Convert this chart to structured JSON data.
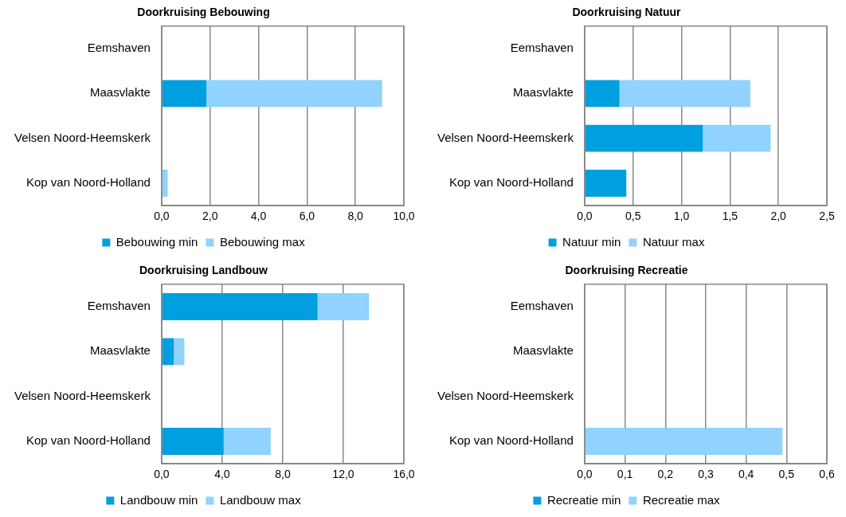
{
  "chart_data": [
    {
      "type": "bar",
      "title": "Doorkruising Bebouwing",
      "orientation": "horizontal",
      "stacked": true,
      "grid": "x",
      "legend": "bottom",
      "categories": [
        "Eemshaven",
        "Maasvlakte",
        "Velsen Noord-Heemskerk",
        "Kop van Noord-Holland"
      ],
      "series": [
        {
          "name": "Bebouwing min",
          "color": "#009fdf",
          "values": [
            0,
            1.85,
            0,
            0
          ]
        },
        {
          "name": "Bebouwing max",
          "color": "#8fd3fe",
          "values": [
            0,
            7.25,
            0,
            0.25
          ]
        }
      ],
      "xlim": [
        0,
        10
      ],
      "xticks": [
        {
          "value": 0,
          "label": "0,0"
        },
        {
          "value": 2,
          "label": "2,0"
        },
        {
          "value": 4,
          "label": "4,0"
        },
        {
          "value": 6,
          "label": "6,0"
        },
        {
          "value": 8,
          "label": "8,0"
        },
        {
          "value": 10,
          "label": "10,0"
        }
      ]
    },
    {
      "type": "bar",
      "title": "Doorkruising Natuur",
      "orientation": "horizontal",
      "stacked": true,
      "grid": "x",
      "legend": "bottom",
      "categories": [
        "Eemshaven",
        "Maasvlakte",
        "Velsen Noord-Heemskerk",
        "Kop van Noord-Holland"
      ],
      "series": [
        {
          "name": "Natuur min",
          "color": "#009fdf",
          "values": [
            0,
            0.36,
            1.22,
            0.43
          ]
        },
        {
          "name": "Natuur max",
          "color": "#8fd3fe",
          "values": [
            0,
            1.35,
            0.7,
            0
          ]
        }
      ],
      "xlim": [
        0,
        2.5
      ],
      "xticks": [
        {
          "value": 0,
          "label": "0,0"
        },
        {
          "value": 0.5,
          "label": "0,5"
        },
        {
          "value": 1,
          "label": "1,0"
        },
        {
          "value": 1.5,
          "label": "1,5"
        },
        {
          "value": 2,
          "label": "2,0"
        },
        {
          "value": 2.5,
          "label": "2,5"
        }
      ]
    },
    {
      "type": "bar",
      "title": "Doorkruising Landbouw",
      "orientation": "horizontal",
      "stacked": true,
      "grid": "x",
      "legend": "bottom",
      "categories": [
        "Eemshaven",
        "Maasvlakte",
        "Velsen Noord-Heemskerk",
        "Kop van Noord-Holland"
      ],
      "series": [
        {
          "name": "Landbouw min",
          "color": "#009fdf",
          "values": [
            10.3,
            0.8,
            0,
            4.1
          ]
        },
        {
          "name": "Landbouw max",
          "color": "#8fd3fe",
          "values": [
            3.4,
            0.7,
            0,
            3.1
          ]
        }
      ],
      "xlim": [
        0,
        16
      ],
      "xticks": [
        {
          "value": 0,
          "label": "0,0"
        },
        {
          "value": 4,
          "label": "4,0"
        },
        {
          "value": 8,
          "label": "8,0"
        },
        {
          "value": 12,
          "label": "12,0"
        },
        {
          "value": 16,
          "label": "16,0"
        }
      ]
    },
    {
      "type": "bar",
      "title": "Doorkruising Recreatie",
      "orientation": "horizontal",
      "stacked": true,
      "grid": "x",
      "legend": "bottom",
      "categories": [
        "Eemshaven",
        "Maasvlakte",
        "Velsen Noord-Heemskerk",
        "Kop van Noord-Holland"
      ],
      "series": [
        {
          "name": "Recreatie min",
          "color": "#009fdf",
          "values": [
            0,
            0,
            0,
            0
          ]
        },
        {
          "name": "Recreatie max",
          "color": "#8fd3fe",
          "values": [
            0,
            0,
            0,
            0.49
          ]
        }
      ],
      "xlim": [
        0,
        0.6
      ],
      "xticks": [
        {
          "value": 0,
          "label": "0,0"
        },
        {
          "value": 0.1,
          "label": "0,1"
        },
        {
          "value": 0.2,
          "label": "0,2"
        },
        {
          "value": 0.3,
          "label": "0,3"
        },
        {
          "value": 0.4,
          "label": "0,4"
        },
        {
          "value": 0.5,
          "label": "0,5"
        },
        {
          "value": 0.6,
          "label": "0,6"
        }
      ]
    }
  ]
}
